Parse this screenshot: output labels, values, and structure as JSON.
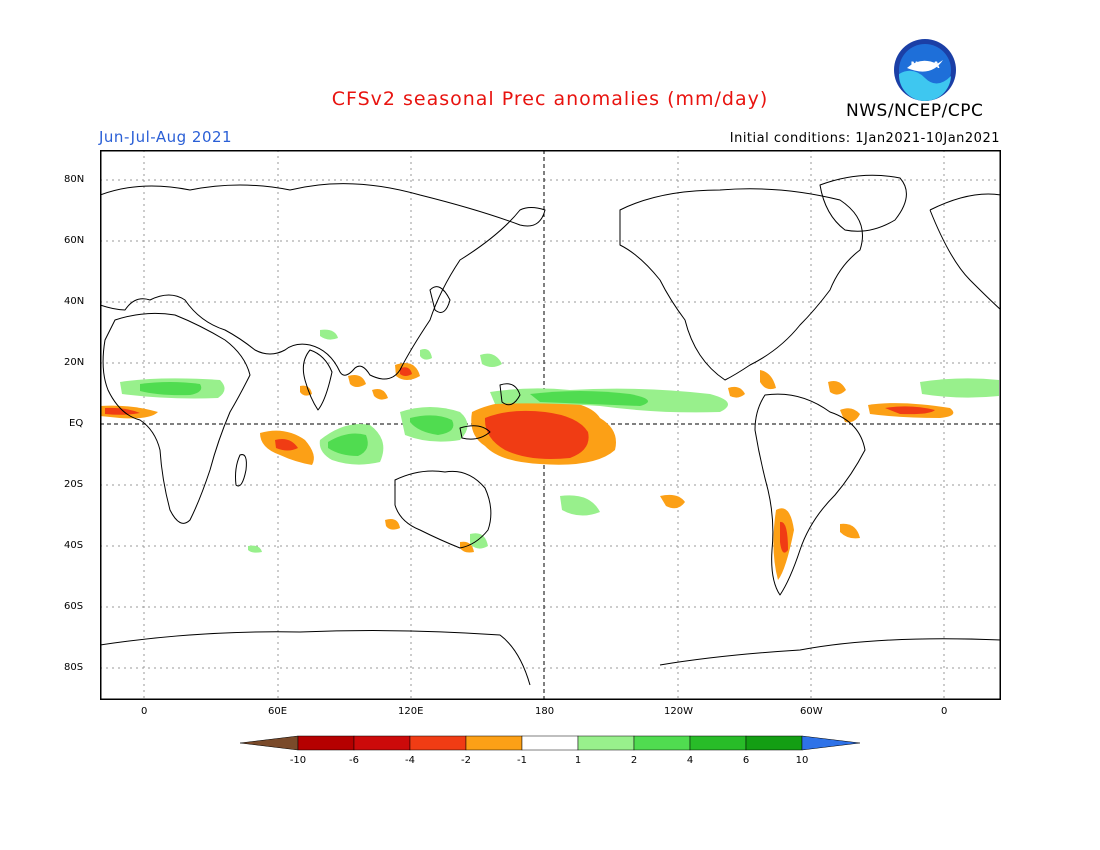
{
  "header": {
    "title": "CFSv2 seasonal Prec anomalies (mm/day)",
    "season": "Jun-Jul-Aug 2021",
    "initial_conditions": "Initial conditions: 1Jan2021-10Jan2021",
    "agency": "NWS/NCEP/CPC",
    "logo_text": "NOAA"
  },
  "map": {
    "lat_labels": [
      "80N",
      "60N",
      "40N",
      "20N",
      "EQ",
      "20S",
      "40S",
      "60S",
      "80S"
    ],
    "lon_labels": [
      "0",
      "60E",
      "120E",
      "180",
      "120W",
      "60W",
      "0"
    ]
  },
  "colorbar": {
    "labels": [
      "-10",
      "-6",
      "-4",
      "-2",
      "-1",
      "1",
      "2",
      "4",
      "6",
      "10"
    ],
    "colors": [
      "#7a4a2a",
      "#b50000",
      "#cc0a0a",
      "#f03c14",
      "#fca016",
      "#ffffff",
      "#98f08c",
      "#50dc50",
      "#28bc28",
      "#139e13",
      "#2e72e8"
    ]
  },
  "colors": {
    "title": "#e8130f",
    "season": "#2a5fd6",
    "dry_strong": "#ef3a14",
    "dry": "#fca016",
    "wet": "#50dc50",
    "wet_light": "#98f08c"
  }
}
